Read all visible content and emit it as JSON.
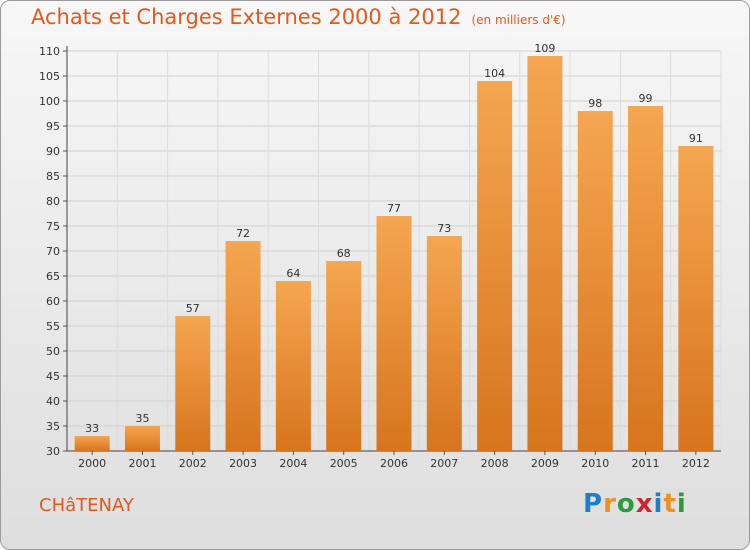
{
  "header": {
    "title": "Achats et Charges Externes 2000 à 2012",
    "unit": "(en milliers d'€)"
  },
  "footer": {
    "commune": "CHâTENAY",
    "logo": "Proxiti"
  },
  "colors": {
    "accent": "#e05a1c",
    "bar_light": "#f5a650",
    "bar_dark": "#d8741e"
  },
  "chart_data": {
    "type": "bar",
    "categories": [
      "2000",
      "2001",
      "2002",
      "2003",
      "2004",
      "2005",
      "2006",
      "2007",
      "2008",
      "2009",
      "2010",
      "2011",
      "2012"
    ],
    "values": [
      33,
      35,
      57,
      72,
      64,
      68,
      77,
      73,
      104,
      109,
      98,
      99,
      91
    ],
    "title": "Achats et Charges Externes 2000 à 2012",
    "xlabel": "",
    "ylabel": "",
    "ylim": [
      30,
      110
    ],
    "yticks": [
      30,
      35,
      40,
      45,
      50,
      55,
      60,
      65,
      70,
      75,
      80,
      85,
      90,
      95,
      100,
      105,
      110
    ],
    "grid": true,
    "legend": "none"
  }
}
